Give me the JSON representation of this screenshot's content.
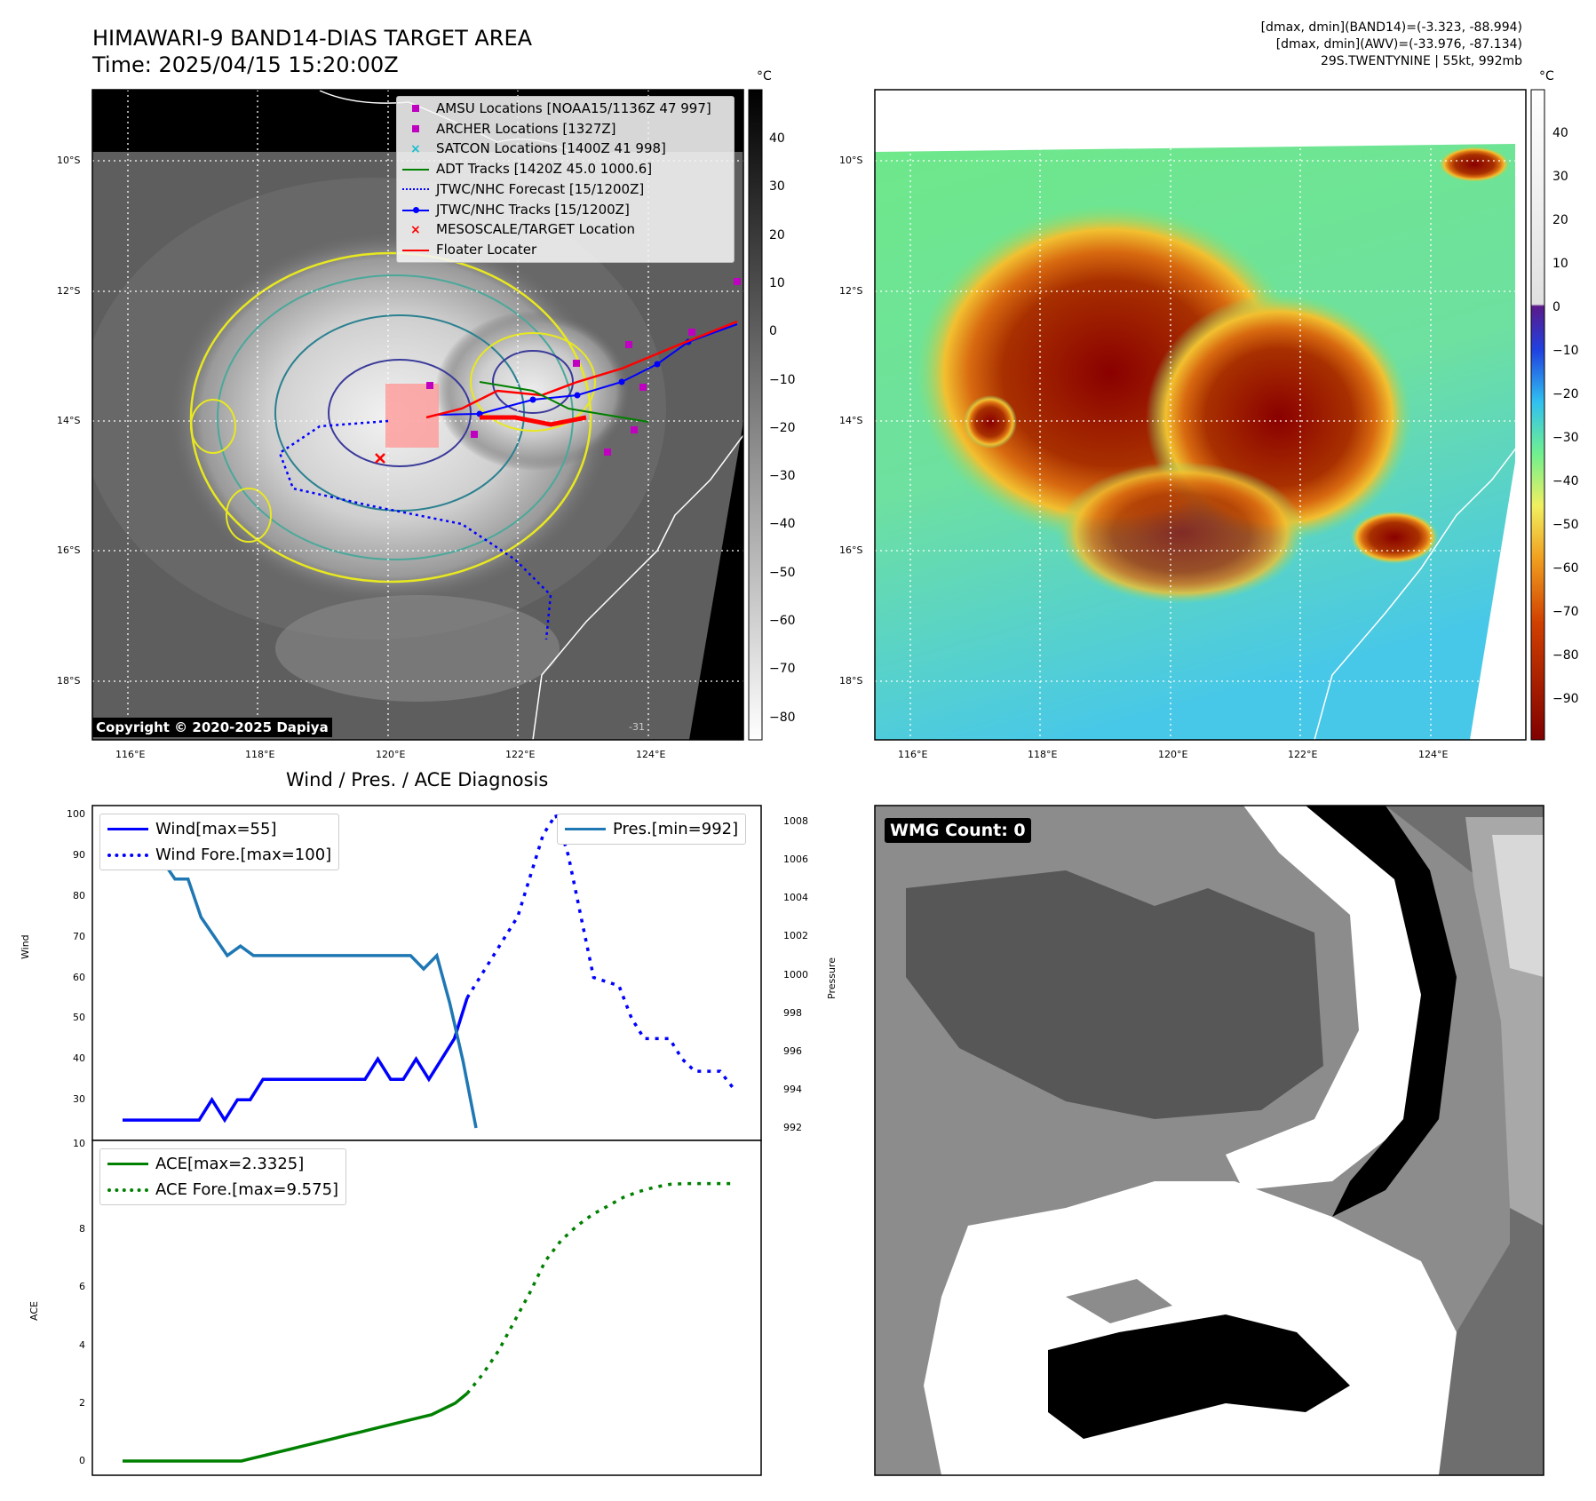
{
  "header": {
    "title_line1": "HIMAWARI-9 BAND14-DIAS TARGET AREA",
    "title_line2": "Time: 2025/04/15 15:20:00Z",
    "info_line1": "[dmax, dmin](BAND14)=(-3.323, -88.994)",
    "info_line2": "[dmax, dmin](AWV)=(-33.976, -87.134)",
    "info_line3": "29S.TWENTYNINE | 55kt, 992mb"
  },
  "map_axes": {
    "lon_labels": [
      "116°E",
      "118°E",
      "120°E",
      "122°E",
      "124°E"
    ],
    "lat_labels": [
      "10°S",
      "12°S",
      "14°S",
      "16°S",
      "18°S"
    ]
  },
  "colorbar_ir": {
    "unit": "°C",
    "ticks": [
      "40",
      "30",
      "20",
      "10",
      "0",
      "−10",
      "−20",
      "−30",
      "−40",
      "−50",
      "−60",
      "−70",
      "−80"
    ]
  },
  "colorbar_bd": {
    "unit": "°C",
    "ticks": [
      "40",
      "30",
      "20",
      "10",
      "0",
      "−10",
      "−20",
      "−30",
      "−40",
      "−50",
      "−60",
      "−70",
      "−80",
      "−90"
    ]
  },
  "legend": {
    "items": [
      {
        "label": "AMSU Locations [NOAA15/1136Z 47 997]",
        "symbol": "square",
        "color": "#c000c0"
      },
      {
        "label": "ARCHER Locations [1327Z]",
        "symbol": "square",
        "color": "#c000c0"
      },
      {
        "label": "SATCON Locations [1400Z 41 998]",
        "symbol": "x",
        "color": "#17becf"
      },
      {
        "label": "ADT Tracks [1420Z 45.0 1000.6]",
        "symbol": "line",
        "color": "#008000"
      },
      {
        "label": "JTWC/NHC Forecast [15/1200Z]",
        "symbol": "dotted",
        "color": "#0000ff"
      },
      {
        "label": "JTWC/NHC Tracks [15/1200Z]",
        "symbol": "line-dot",
        "color": "#0000ff"
      },
      {
        "label": "MESOSCALE/TARGET Location",
        "symbol": "x",
        "color": "#ff0000"
      },
      {
        "label": "Floater Locater",
        "symbol": "line",
        "color": "#ff0000"
      }
    ]
  },
  "map_labels": {
    "copyright": "Copyright © 2020-2025 Dapiya",
    "bottom_corner": "-31"
  },
  "diagnosis": {
    "title": "Wind / Pres. / ACE Diagnosis",
    "wind_ylabel": "Wind",
    "pres_ylabel": "Pressure",
    "ace_ylabel": "ACE",
    "legend_wind": "Wind[max=55]",
    "legend_wind_fore": "Wind Fore.[max=100]",
    "legend_pres": "Pres.[min=992]",
    "legend_ace": "ACE[max=2.3325]",
    "legend_ace_fore": "ACE Fore.[max=9.575]",
    "wind_ticks": [
      "100",
      "90",
      "80",
      "70",
      "60",
      "50",
      "40",
      "30",
      "10"
    ],
    "pres_ticks": [
      "1008",
      "1006",
      "1004",
      "1002",
      "1000",
      "998",
      "996",
      "994",
      "992"
    ],
    "ace_ticks": [
      "8",
      "6",
      "4",
      "2",
      "0"
    ]
  },
  "wmg": {
    "label": "WMG Count: 0"
  },
  "colors": {
    "wind": "#0000ff",
    "pressure": "#1f77b4",
    "ace": "#008000",
    "target": "#ff0000"
  },
  "chart_data": [
    {
      "type": "line",
      "title": "Wind / Pres. / ACE Diagnosis",
      "ylabel": "Wind",
      "ylim": [
        20,
        101
      ],
      "series": [
        {
          "name": "Wind[max=55]",
          "values": [
            25,
            25,
            25,
            25,
            25,
            25,
            25,
            30,
            25,
            30,
            30,
            35,
            35,
            35,
            35,
            35,
            35,
            35,
            35,
            35,
            40,
            35,
            35,
            40,
            35,
            40,
            45,
            55
          ]
        },
        {
          "name": "Wind Fore.[max=100]",
          "values": [
            55,
            60,
            65,
            70,
            75,
            85,
            95,
            100,
            90,
            75,
            60,
            59,
            58,
            50,
            45,
            45,
            45,
            40,
            37,
            37,
            37,
            33
          ]
        }
      ]
    },
    {
      "type": "line",
      "ylabel": "Pressure",
      "ylim": [
        991.8,
        1008.5
      ],
      "series": [
        {
          "name": "Pres.[min=992]",
          "values": [
            1008,
            1006,
            1006,
            1006,
            1005,
            1005,
            1003,
            1002,
            1001,
            1001.5,
            1001,
            1001,
            1001,
            1001,
            1001,
            1001,
            1001,
            1001,
            1001,
            1001,
            1001,
            1001,
            1001,
            1000.3,
            1001,
            998.5,
            995.5,
            992
          ]
        }
      ]
    },
    {
      "type": "line",
      "ylabel": "ACE",
      "ylim": [
        -0.4,
        10.3
      ],
      "series": [
        {
          "name": "ACE[max=2.3325]",
          "values": [
            0,
            0,
            0,
            0,
            0,
            0,
            0,
            0,
            0,
            0,
            0,
            0.1,
            0.2,
            0.3,
            0.4,
            0.5,
            0.6,
            0.7,
            0.8,
            0.9,
            1.0,
            1.1,
            1.2,
            1.3,
            1.4,
            1.5,
            1.6,
            1.8,
            2.0,
            2.3325
          ]
        },
        {
          "name": "ACE Fore.[max=9.575]",
          "values": [
            2.3325,
            3.0,
            3.8,
            4.8,
            5.8,
            6.9,
            7.6,
            8.1,
            8.5,
            8.8,
            9.1,
            9.3,
            9.45,
            9.55,
            9.575,
            9.575,
            9.575,
            9.575
          ]
        }
      ]
    }
  ]
}
